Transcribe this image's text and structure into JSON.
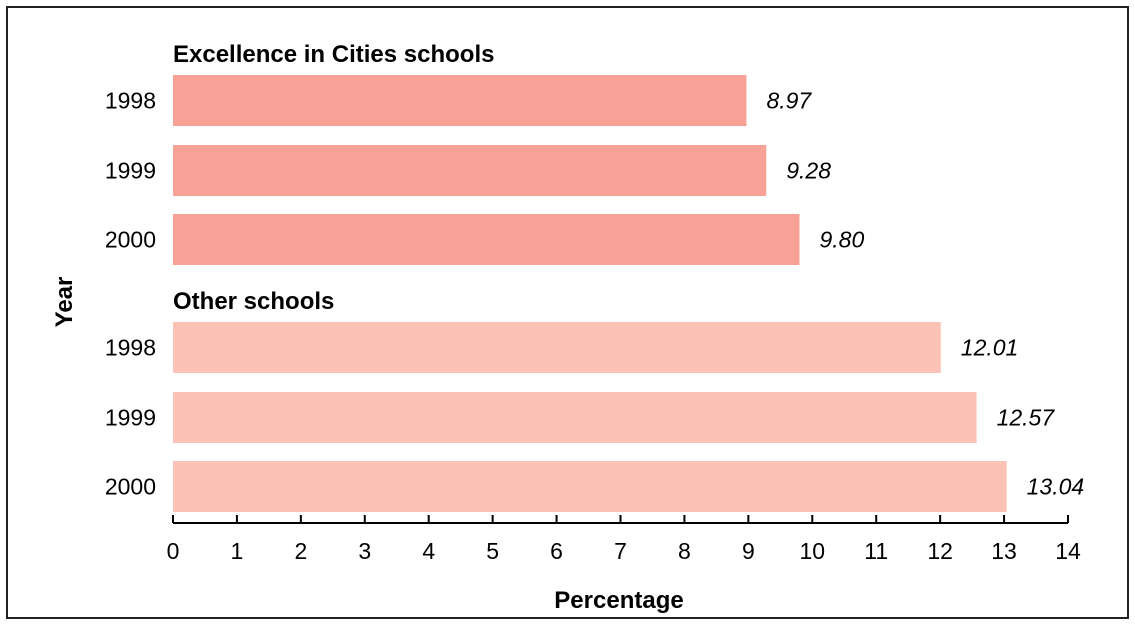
{
  "chart_data": {
    "type": "bar",
    "orientation": "horizontal",
    "xlabel": "Percentage",
    "ylabel": "Year",
    "xlim": [
      0,
      14
    ],
    "xticks": [
      0,
      1,
      2,
      3,
      4,
      5,
      6,
      7,
      8,
      9,
      10,
      11,
      12,
      13,
      14
    ],
    "grid": false,
    "groups": [
      {
        "name": "Excellence in Cities schools",
        "color": "#f7a197",
        "categories": [
          "1998",
          "1999",
          "2000"
        ],
        "values": [
          8.97,
          9.28,
          9.8
        ],
        "value_labels": [
          "8.97",
          "9.28",
          "9.80"
        ]
      },
      {
        "name": "Other schools",
        "color": "#fbc2b5",
        "categories": [
          "1998",
          "1999",
          "2000"
        ],
        "values": [
          12.01,
          12.57,
          13.04
        ],
        "value_labels": [
          "12.01",
          "12.57",
          "13.04"
        ]
      }
    ]
  }
}
